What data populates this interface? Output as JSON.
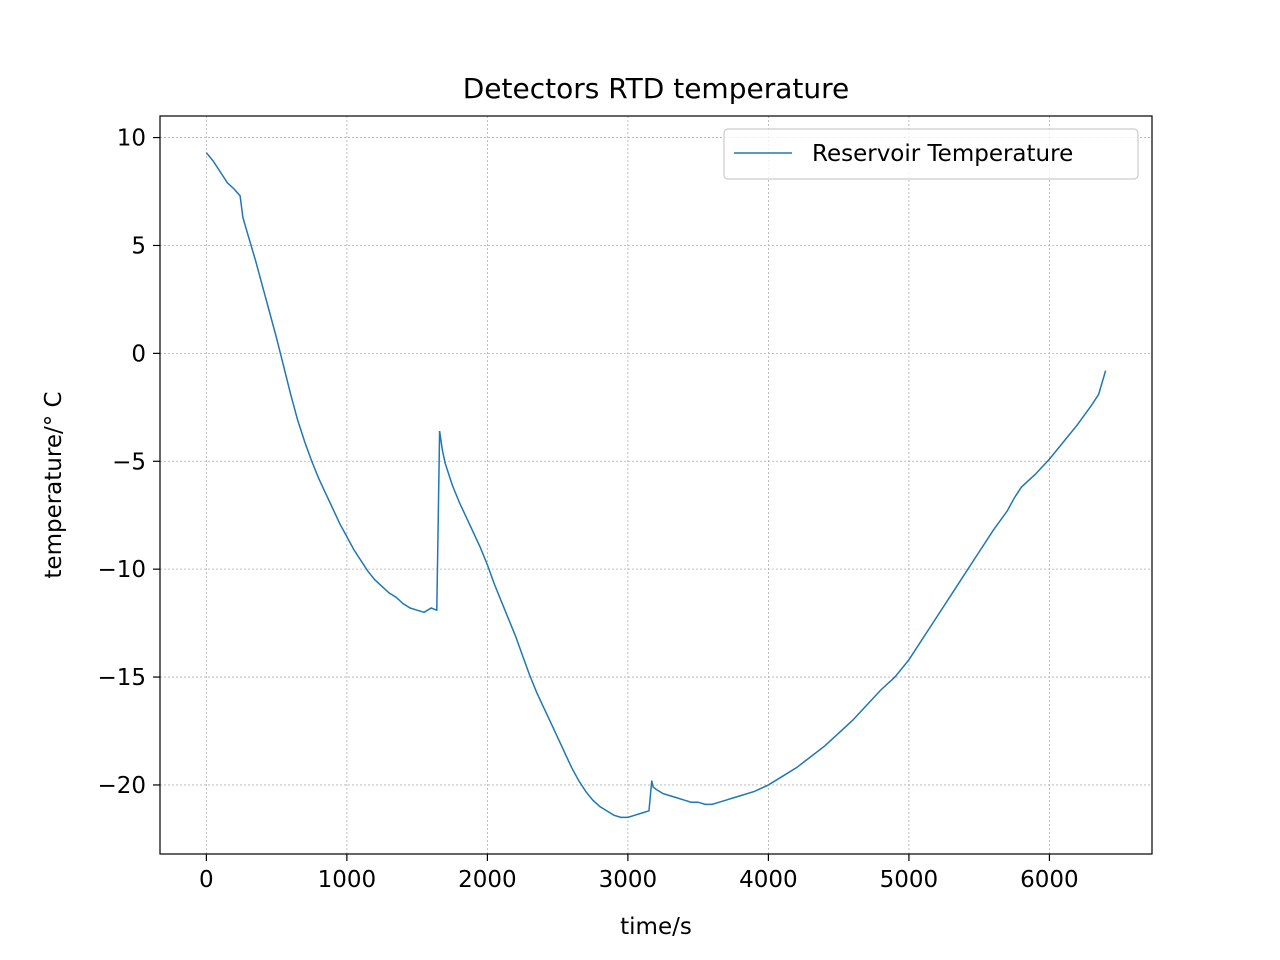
{
  "chart_data": {
    "type": "line",
    "title": "Detectors RTD temperature",
    "xlabel": "time/s",
    "ylabel": "temperature/° C",
    "xlim": [
      -330,
      6730
    ],
    "ylim": [
      -23.2,
      11
    ],
    "xticks": [
      0,
      1000,
      2000,
      3000,
      4000,
      5000,
      6000
    ],
    "xtick_labels": [
      "0",
      "1000",
      "2000",
      "3000",
      "4000",
      "5000",
      "6000"
    ],
    "yticks": [
      10,
      5,
      0,
      -5,
      -10,
      -15,
      -20
    ],
    "ytick_labels": [
      "10",
      "5",
      "0",
      "−5",
      "−10",
      "−15",
      "−20"
    ],
    "grid": true,
    "legend_position": "upper-right",
    "series": [
      {
        "name": "Reservoir Temperature",
        "color": "#1f77b4",
        "x": [
          0,
          50,
          100,
          150,
          200,
          240,
          260,
          300,
          350,
          400,
          450,
          500,
          550,
          600,
          650,
          700,
          750,
          800,
          850,
          900,
          950,
          1000,
          1050,
          1100,
          1150,
          1200,
          1250,
          1300,
          1350,
          1400,
          1450,
          1500,
          1550,
          1600,
          1640,
          1660,
          1680,
          1700,
          1750,
          1800,
          1850,
          1900,
          1950,
          2000,
          2050,
          2100,
          2150,
          2200,
          2250,
          2300,
          2350,
          2400,
          2450,
          2500,
          2550,
          2600,
          2650,
          2700,
          2750,
          2800,
          2850,
          2900,
          2950,
          3000,
          3050,
          3100,
          3150,
          3170,
          3180,
          3200,
          3250,
          3300,
          3350,
          3400,
          3450,
          3500,
          3550,
          3600,
          3650,
          3700,
          3750,
          3800,
          3900,
          4000,
          4100,
          4200,
          4300,
          4400,
          4500,
          4600,
          4700,
          4800,
          4900,
          5000,
          5100,
          5200,
          5300,
          5400,
          5500,
          5600,
          5700,
          5750,
          5800,
          5900,
          6000,
          6100,
          6200,
          6300,
          6350,
          6400
        ],
        "y": [
          9.3,
          8.9,
          8.4,
          7.9,
          7.6,
          7.3,
          6.3,
          5.4,
          4.3,
          3.1,
          1.9,
          0.7,
          -0.6,
          -1.9,
          -3.1,
          -4.1,
          -5.0,
          -5.8,
          -6.5,
          -7.2,
          -7.9,
          -8.5,
          -9.1,
          -9.6,
          -10.1,
          -10.5,
          -10.8,
          -11.1,
          -11.3,
          -11.6,
          -11.8,
          -11.9,
          -12.0,
          -11.8,
          -11.9,
          -3.6,
          -4.5,
          -5.1,
          -6.1,
          -6.9,
          -7.6,
          -8.3,
          -9.0,
          -9.8,
          -10.7,
          -11.5,
          -12.3,
          -13.1,
          -14.0,
          -14.9,
          -15.7,
          -16.4,
          -17.1,
          -17.8,
          -18.5,
          -19.2,
          -19.8,
          -20.3,
          -20.7,
          -21.0,
          -21.2,
          -21.4,
          -21.5,
          -21.5,
          -21.4,
          -21.3,
          -21.2,
          -19.8,
          -20.1,
          -20.2,
          -20.4,
          -20.5,
          -20.6,
          -20.7,
          -20.8,
          -20.8,
          -20.9,
          -20.9,
          -20.8,
          -20.7,
          -20.6,
          -20.5,
          -20.3,
          -20.0,
          -19.6,
          -19.2,
          -18.7,
          -18.2,
          -17.6,
          -17.0,
          -16.3,
          -15.6,
          -15.0,
          -14.2,
          -13.2,
          -12.2,
          -11.2,
          -10.2,
          -9.2,
          -8.2,
          -7.3,
          -6.7,
          -6.2,
          -5.6,
          -4.9,
          -4.1,
          -3.3,
          -2.4,
          -1.9,
          -0.8
        ]
      }
    ]
  }
}
